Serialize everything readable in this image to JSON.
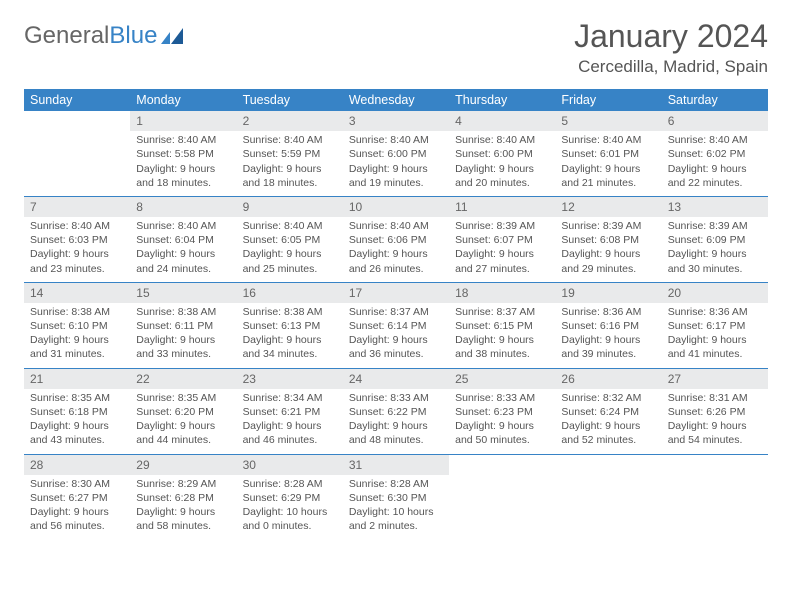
{
  "logo": {
    "text1": "General",
    "text2": "Blue"
  },
  "title": "January 2024",
  "location": "Cercedilla, Madrid, Spain",
  "colors": {
    "header_bg": "#3783c6",
    "daynum_bg": "#e9eaeb",
    "text": "#555555",
    "logo_blue": "#3783c6",
    "logo_gray": "#666666"
  },
  "days_of_week": [
    "Sunday",
    "Monday",
    "Tuesday",
    "Wednesday",
    "Thursday",
    "Friday",
    "Saturday"
  ],
  "weeks": [
    [
      {
        "n": "",
        "sunrise": "",
        "sunset": "",
        "daylight": "",
        "empty": true
      },
      {
        "n": "1",
        "sunrise": "Sunrise: 8:40 AM",
        "sunset": "Sunset: 5:58 PM",
        "daylight": "Daylight: 9 hours and 18 minutes."
      },
      {
        "n": "2",
        "sunrise": "Sunrise: 8:40 AM",
        "sunset": "Sunset: 5:59 PM",
        "daylight": "Daylight: 9 hours and 18 minutes."
      },
      {
        "n": "3",
        "sunrise": "Sunrise: 8:40 AM",
        "sunset": "Sunset: 6:00 PM",
        "daylight": "Daylight: 9 hours and 19 minutes."
      },
      {
        "n": "4",
        "sunrise": "Sunrise: 8:40 AM",
        "sunset": "Sunset: 6:00 PM",
        "daylight": "Daylight: 9 hours and 20 minutes."
      },
      {
        "n": "5",
        "sunrise": "Sunrise: 8:40 AM",
        "sunset": "Sunset: 6:01 PM",
        "daylight": "Daylight: 9 hours and 21 minutes."
      },
      {
        "n": "6",
        "sunrise": "Sunrise: 8:40 AM",
        "sunset": "Sunset: 6:02 PM",
        "daylight": "Daylight: 9 hours and 22 minutes."
      }
    ],
    [
      {
        "n": "7",
        "sunrise": "Sunrise: 8:40 AM",
        "sunset": "Sunset: 6:03 PM",
        "daylight": "Daylight: 9 hours and 23 minutes."
      },
      {
        "n": "8",
        "sunrise": "Sunrise: 8:40 AM",
        "sunset": "Sunset: 6:04 PM",
        "daylight": "Daylight: 9 hours and 24 minutes."
      },
      {
        "n": "9",
        "sunrise": "Sunrise: 8:40 AM",
        "sunset": "Sunset: 6:05 PM",
        "daylight": "Daylight: 9 hours and 25 minutes."
      },
      {
        "n": "10",
        "sunrise": "Sunrise: 8:40 AM",
        "sunset": "Sunset: 6:06 PM",
        "daylight": "Daylight: 9 hours and 26 minutes."
      },
      {
        "n": "11",
        "sunrise": "Sunrise: 8:39 AM",
        "sunset": "Sunset: 6:07 PM",
        "daylight": "Daylight: 9 hours and 27 minutes."
      },
      {
        "n": "12",
        "sunrise": "Sunrise: 8:39 AM",
        "sunset": "Sunset: 6:08 PM",
        "daylight": "Daylight: 9 hours and 29 minutes."
      },
      {
        "n": "13",
        "sunrise": "Sunrise: 8:39 AM",
        "sunset": "Sunset: 6:09 PM",
        "daylight": "Daylight: 9 hours and 30 minutes."
      }
    ],
    [
      {
        "n": "14",
        "sunrise": "Sunrise: 8:38 AM",
        "sunset": "Sunset: 6:10 PM",
        "daylight": "Daylight: 9 hours and 31 minutes."
      },
      {
        "n": "15",
        "sunrise": "Sunrise: 8:38 AM",
        "sunset": "Sunset: 6:11 PM",
        "daylight": "Daylight: 9 hours and 33 minutes."
      },
      {
        "n": "16",
        "sunrise": "Sunrise: 8:38 AM",
        "sunset": "Sunset: 6:13 PM",
        "daylight": "Daylight: 9 hours and 34 minutes."
      },
      {
        "n": "17",
        "sunrise": "Sunrise: 8:37 AM",
        "sunset": "Sunset: 6:14 PM",
        "daylight": "Daylight: 9 hours and 36 minutes."
      },
      {
        "n": "18",
        "sunrise": "Sunrise: 8:37 AM",
        "sunset": "Sunset: 6:15 PM",
        "daylight": "Daylight: 9 hours and 38 minutes."
      },
      {
        "n": "19",
        "sunrise": "Sunrise: 8:36 AM",
        "sunset": "Sunset: 6:16 PM",
        "daylight": "Daylight: 9 hours and 39 minutes."
      },
      {
        "n": "20",
        "sunrise": "Sunrise: 8:36 AM",
        "sunset": "Sunset: 6:17 PM",
        "daylight": "Daylight: 9 hours and 41 minutes."
      }
    ],
    [
      {
        "n": "21",
        "sunrise": "Sunrise: 8:35 AM",
        "sunset": "Sunset: 6:18 PM",
        "daylight": "Daylight: 9 hours and 43 minutes."
      },
      {
        "n": "22",
        "sunrise": "Sunrise: 8:35 AM",
        "sunset": "Sunset: 6:20 PM",
        "daylight": "Daylight: 9 hours and 44 minutes."
      },
      {
        "n": "23",
        "sunrise": "Sunrise: 8:34 AM",
        "sunset": "Sunset: 6:21 PM",
        "daylight": "Daylight: 9 hours and 46 minutes."
      },
      {
        "n": "24",
        "sunrise": "Sunrise: 8:33 AM",
        "sunset": "Sunset: 6:22 PM",
        "daylight": "Daylight: 9 hours and 48 minutes."
      },
      {
        "n": "25",
        "sunrise": "Sunrise: 8:33 AM",
        "sunset": "Sunset: 6:23 PM",
        "daylight": "Daylight: 9 hours and 50 minutes."
      },
      {
        "n": "26",
        "sunrise": "Sunrise: 8:32 AM",
        "sunset": "Sunset: 6:24 PM",
        "daylight": "Daylight: 9 hours and 52 minutes."
      },
      {
        "n": "27",
        "sunrise": "Sunrise: 8:31 AM",
        "sunset": "Sunset: 6:26 PM",
        "daylight": "Daylight: 9 hours and 54 minutes."
      }
    ],
    [
      {
        "n": "28",
        "sunrise": "Sunrise: 8:30 AM",
        "sunset": "Sunset: 6:27 PM",
        "daylight": "Daylight: 9 hours and 56 minutes."
      },
      {
        "n": "29",
        "sunrise": "Sunrise: 8:29 AM",
        "sunset": "Sunset: 6:28 PM",
        "daylight": "Daylight: 9 hours and 58 minutes."
      },
      {
        "n": "30",
        "sunrise": "Sunrise: 8:28 AM",
        "sunset": "Sunset: 6:29 PM",
        "daylight": "Daylight: 10 hours and 0 minutes."
      },
      {
        "n": "31",
        "sunrise": "Sunrise: 8:28 AM",
        "sunset": "Sunset: 6:30 PM",
        "daylight": "Daylight: 10 hours and 2 minutes."
      },
      {
        "n": "",
        "sunrise": "",
        "sunset": "",
        "daylight": "",
        "empty": true
      },
      {
        "n": "",
        "sunrise": "",
        "sunset": "",
        "daylight": "",
        "empty": true
      },
      {
        "n": "",
        "sunrise": "",
        "sunset": "",
        "daylight": "",
        "empty": true
      }
    ]
  ]
}
